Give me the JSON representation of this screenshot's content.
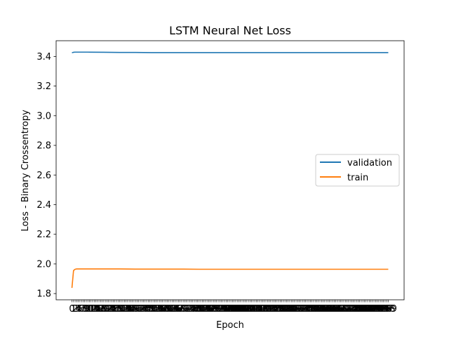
{
  "chart_data": {
    "type": "line",
    "title": "LSTM Neural Net Loss",
    "xlabel": "Epoch",
    "ylabel": "Loss - Binary Crossentropy",
    "x": [
      0,
      1,
      2,
      3,
      4,
      5,
      10,
      20,
      30,
      40,
      50,
      60,
      70,
      80,
      90,
      100,
      110,
      120,
      130,
      140,
      150,
      160,
      170,
      180,
      190,
      199
    ],
    "xlim": [
      -9.95,
      208.95
    ],
    "ylim": [
      1.758,
      3.506
    ],
    "yticks": [
      1.8,
      2.0,
      2.2,
      2.4,
      2.6,
      2.8,
      3.0,
      3.2,
      3.4
    ],
    "ytick_labels": [
      "1.8",
      "2.0",
      "2.2",
      "2.4",
      "2.6",
      "2.8",
      "3.0",
      "3.2",
      "3.4"
    ],
    "xticks_note": "one tick per epoch 0-199; labels overlap into an unreadable band",
    "grid": false,
    "legend_position": "center-right",
    "series": [
      {
        "name": "validation",
        "color": "#1f77b4",
        "values": [
          3.425,
          3.428,
          3.429,
          3.429,
          3.429,
          3.429,
          3.429,
          3.428,
          3.427,
          3.427,
          3.426,
          3.426,
          3.426,
          3.426,
          3.426,
          3.426,
          3.426,
          3.426,
          3.426,
          3.426,
          3.426,
          3.426,
          3.426,
          3.426,
          3.426,
          3.426
        ]
      },
      {
        "name": "train",
        "color": "#ff7f0e",
        "values": [
          1.838,
          1.955,
          1.964,
          1.966,
          1.966,
          1.966,
          1.966,
          1.966,
          1.966,
          1.965,
          1.965,
          1.965,
          1.965,
          1.964,
          1.964,
          1.964,
          1.964,
          1.964,
          1.964,
          1.964,
          1.964,
          1.964,
          1.964,
          1.964,
          1.964,
          1.964
        ]
      }
    ]
  }
}
